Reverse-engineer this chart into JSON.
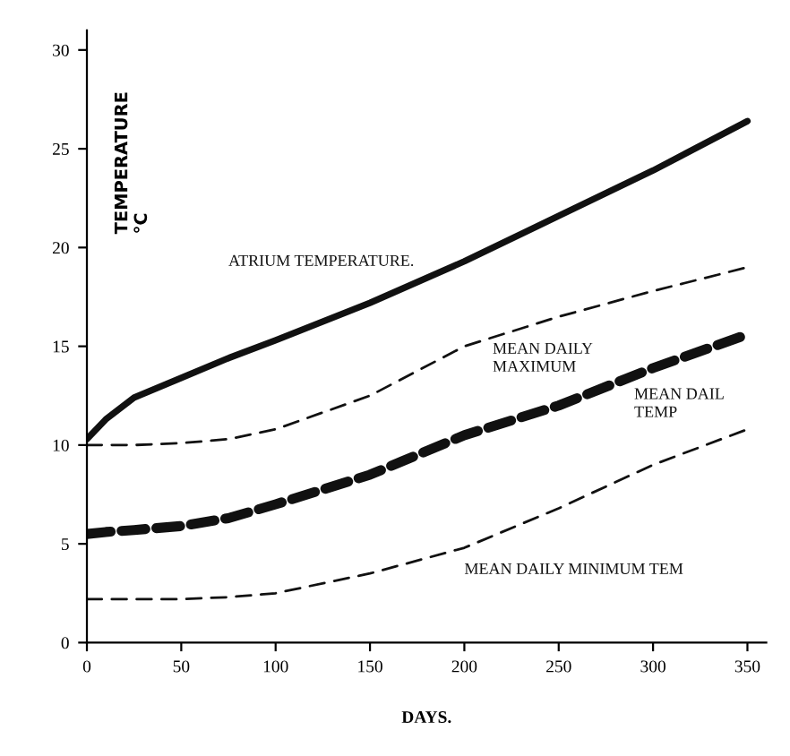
{
  "chart_data": {
    "type": "line",
    "xlabel": "DAYS.",
    "ylabel": "TEMPERATURE\n°C",
    "xlim": [
      0,
      360
    ],
    "ylim": [
      0,
      31
    ],
    "xticks": [
      0,
      50,
      100,
      150,
      200,
      250,
      300,
      350
    ],
    "yticks": [
      0,
      5,
      10,
      15,
      20,
      25,
      30
    ],
    "grid": false,
    "legend": false,
    "marker": "none",
    "x": [
      0,
      10,
      25,
      50,
      75,
      100,
      150,
      200,
      250,
      300,
      350
    ],
    "series": [
      {
        "name": "ATRIUM TEMPERATURE.",
        "color": "#111111",
        "line_style": "solid",
        "values": [
          10.3,
          11.3,
          12.4,
          13.4,
          14.4,
          15.3,
          17.2,
          19.3,
          21.6,
          23.9,
          26.4
        ]
      },
      {
        "name": "MEAN DAILY\nMAXIMUM",
        "color": "#111111",
        "line_style": "dashed",
        "values": [
          10,
          10,
          10,
          10.1,
          10.3,
          10.8,
          12.5,
          15,
          16.5,
          17.8,
          19
        ]
      },
      {
        "name": "MEAN DAIL\nTEMP",
        "color": "#111111",
        "line_style": "dashed",
        "values": [
          5.5,
          5.6,
          5.7,
          5.9,
          6.3,
          7,
          8.5,
          10.5,
          12,
          13.9,
          15.6
        ]
      },
      {
        "name": "MEAN DAILY MINIMUM TEM",
        "color": "#111111",
        "line_style": "dashed",
        "values": [
          2.2,
          2.2,
          2.2,
          2.2,
          2.3,
          2.5,
          3.5,
          4.8,
          6.8,
          9,
          10.8
        ]
      }
    ]
  }
}
